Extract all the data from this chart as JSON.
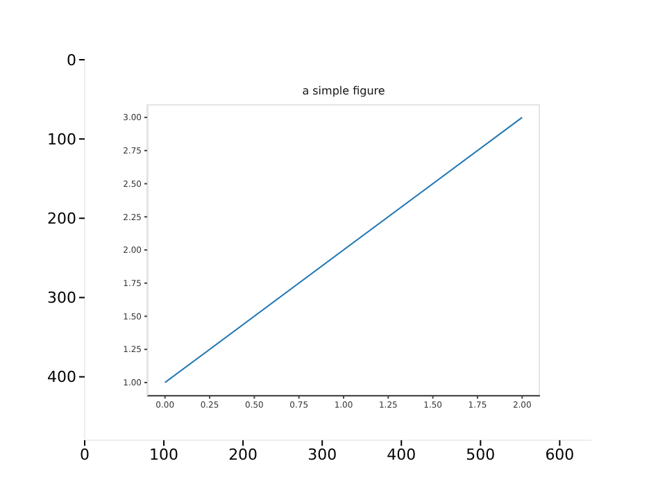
{
  "chart_data": [
    {
      "type": "scatter",
      "xlim": [
        0,
        640
      ],
      "ylim": [
        480,
        0
      ],
      "xticks": [
        0,
        100,
        200,
        300,
        400,
        500,
        600
      ],
      "yticks": [
        0,
        100,
        200,
        300,
        400
      ]
    },
    {
      "type": "line",
      "title": "a simple figure",
      "x": [
        0,
        2
      ],
      "series": [
        {
          "color": "#1f77b4",
          "values": [
            1,
            3
          ]
        }
      ],
      "xlim": [
        -0.1,
        2.1
      ],
      "ylim": [
        0.9,
        3.1
      ],
      "xticks": [
        {
          "value": 0,
          "label": "0.00"
        },
        {
          "value": 0.25,
          "label": "0.25"
        },
        {
          "value": 0.5,
          "label": "0.50"
        },
        {
          "value": 0.75,
          "label": "0.75"
        },
        {
          "value": 1,
          "label": "1.00"
        },
        {
          "value": 1.25,
          "label": "1.25"
        },
        {
          "value": 1.5,
          "label": "1.50"
        },
        {
          "value": 1.75,
          "label": "1.75"
        },
        {
          "value": 2,
          "label": "2.00"
        }
      ],
      "yticks": [
        {
          "value": 1,
          "label": "1.00"
        },
        {
          "value": 1.25,
          "label": "1.25"
        },
        {
          "value": 1.5,
          "label": "1.50"
        },
        {
          "value": 1.75,
          "label": "1.75"
        },
        {
          "value": 2,
          "label": "2.00"
        },
        {
          "value": 2.25,
          "label": "2.25"
        },
        {
          "value": 2.5,
          "label": "2.50"
        },
        {
          "value": 2.75,
          "label": "2.75"
        },
        {
          "value": 3,
          "label": "3.00"
        }
      ],
      "grid": false,
      "legend": false,
      "marker": "none",
      "line_style": "solid"
    }
  ]
}
